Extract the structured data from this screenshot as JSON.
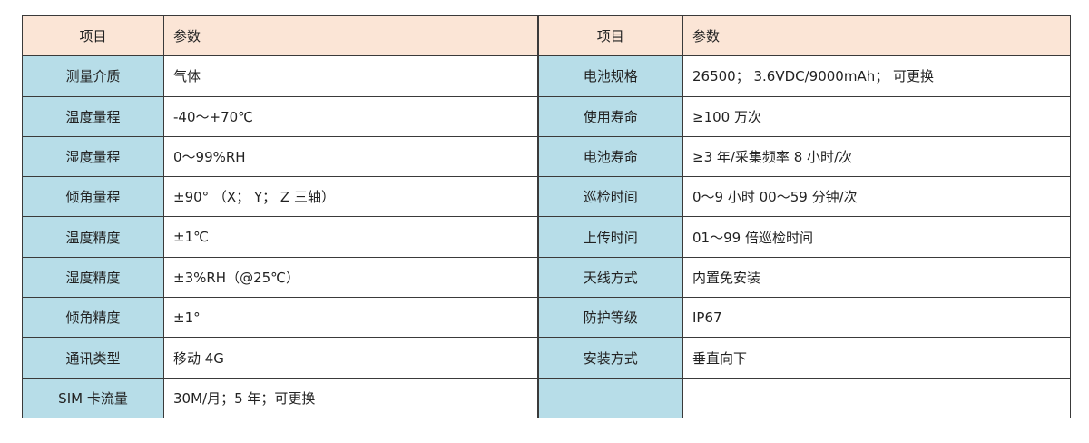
{
  "header": {
    "item": "项目",
    "param": "参数"
  },
  "left": [
    {
      "key": "测量介质",
      "value": "气体"
    },
    {
      "key": "温度量程",
      "value": "-40～+70℃"
    },
    {
      "key": "湿度量程",
      "value": "0～99%RH"
    },
    {
      "key": "倾角量程",
      "value": "±90° （X； Y； Z 三轴）"
    },
    {
      "key": "温度精度",
      "value": "±1℃"
    },
    {
      "key": "湿度精度",
      "value": "±3%RH（@25℃）"
    },
    {
      "key": "倾角精度",
      "value": "±1°"
    },
    {
      "key": "通讯类型",
      "value": "移动 4G"
    },
    {
      "key": "SIM 卡流量",
      "value": "30M/月；5 年；可更换"
    }
  ],
  "right": [
    {
      "key": "电池规格",
      "value": "26500； 3.6VDC/9000mAh； 可更换"
    },
    {
      "key": "使用寿命",
      "value": "≥100 万次"
    },
    {
      "key": "电池寿命",
      "value": "≥3 年/采集频率 8 小时/次"
    },
    {
      "key": "巡检时间",
      "value": "0～9 小时 00～59 分钟/次"
    },
    {
      "key": "上传时间",
      "value": "01～99 倍巡检时间"
    },
    {
      "key": "天线方式",
      "value": "内置免安装"
    },
    {
      "key": "防护等级",
      "value": "IP67"
    },
    {
      "key": "安装方式",
      "value": "垂直向下"
    },
    {
      "key": "",
      "value": ""
    }
  ],
  "colors": {
    "header_bg": "#fbe5d6",
    "key_bg": "#b7dde8"
  }
}
